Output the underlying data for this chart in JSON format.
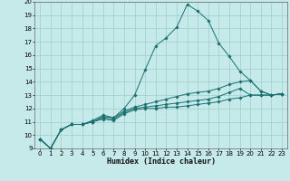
{
  "xlabel": "Humidex (Indice chaleur)",
  "xlim": [
    -0.5,
    23.5
  ],
  "ylim": [
    9,
    20
  ],
  "xticks": [
    0,
    1,
    2,
    3,
    4,
    5,
    6,
    7,
    8,
    9,
    10,
    11,
    12,
    13,
    14,
    15,
    16,
    17,
    18,
    19,
    20,
    21,
    22,
    23
  ],
  "yticks": [
    9,
    10,
    11,
    12,
    13,
    14,
    15,
    16,
    17,
    18,
    19,
    20
  ],
  "background_color": "#c6e9e9",
  "grid_color": "#a0cccc",
  "line_color": "#1a7070",
  "lines": [
    {
      "x": [
        0,
        1,
        2,
        3,
        4,
        5,
        6,
        7,
        8,
        9,
        10,
        11,
        12,
        13,
        14,
        15,
        16,
        17,
        18,
        19,
        20,
        21,
        22,
        23
      ],
      "y": [
        9.7,
        9.0,
        10.4,
        10.8,
        10.8,
        11.1,
        11.5,
        11.3,
        12.0,
        13.0,
        14.9,
        16.7,
        17.3,
        18.1,
        19.8,
        19.3,
        18.6,
        16.9,
        15.9,
        14.8,
        14.1,
        13.3,
        13.0,
        13.1
      ]
    },
    {
      "x": [
        0,
        1,
        2,
        3,
        4,
        5,
        6,
        7,
        8,
        9,
        10,
        11,
        12,
        13,
        14,
        15,
        16,
        17,
        18,
        19,
        20,
        21,
        22,
        23
      ],
      "y": [
        9.7,
        9.0,
        10.4,
        10.8,
        10.8,
        11.0,
        11.4,
        11.3,
        11.8,
        12.1,
        12.3,
        12.5,
        12.7,
        12.9,
        13.1,
        13.2,
        13.3,
        13.5,
        13.8,
        14.0,
        14.1,
        13.3,
        13.0,
        13.1
      ]
    },
    {
      "x": [
        0,
        1,
        2,
        3,
        4,
        5,
        6,
        7,
        8,
        9,
        10,
        11,
        12,
        13,
        14,
        15,
        16,
        17,
        18,
        19,
        20,
        21,
        22,
        23
      ],
      "y": [
        9.7,
        9.0,
        10.4,
        10.8,
        10.8,
        11.0,
        11.3,
        11.2,
        11.7,
        12.0,
        12.1,
        12.2,
        12.3,
        12.4,
        12.5,
        12.6,
        12.7,
        12.9,
        13.2,
        13.5,
        13.0,
        13.0,
        13.0,
        13.1
      ]
    },
    {
      "x": [
        0,
        1,
        2,
        3,
        4,
        5,
        6,
        7,
        8,
        9,
        10,
        11,
        12,
        13,
        14,
        15,
        16,
        17,
        18,
        19,
        20,
        21,
        22,
        23
      ],
      "y": [
        9.7,
        9.0,
        10.4,
        10.8,
        10.8,
        11.0,
        11.2,
        11.1,
        11.6,
        11.9,
        12.0,
        12.0,
        12.1,
        12.1,
        12.2,
        12.3,
        12.4,
        12.5,
        12.7,
        12.8,
        13.0,
        13.0,
        13.0,
        13.1
      ]
    }
  ]
}
